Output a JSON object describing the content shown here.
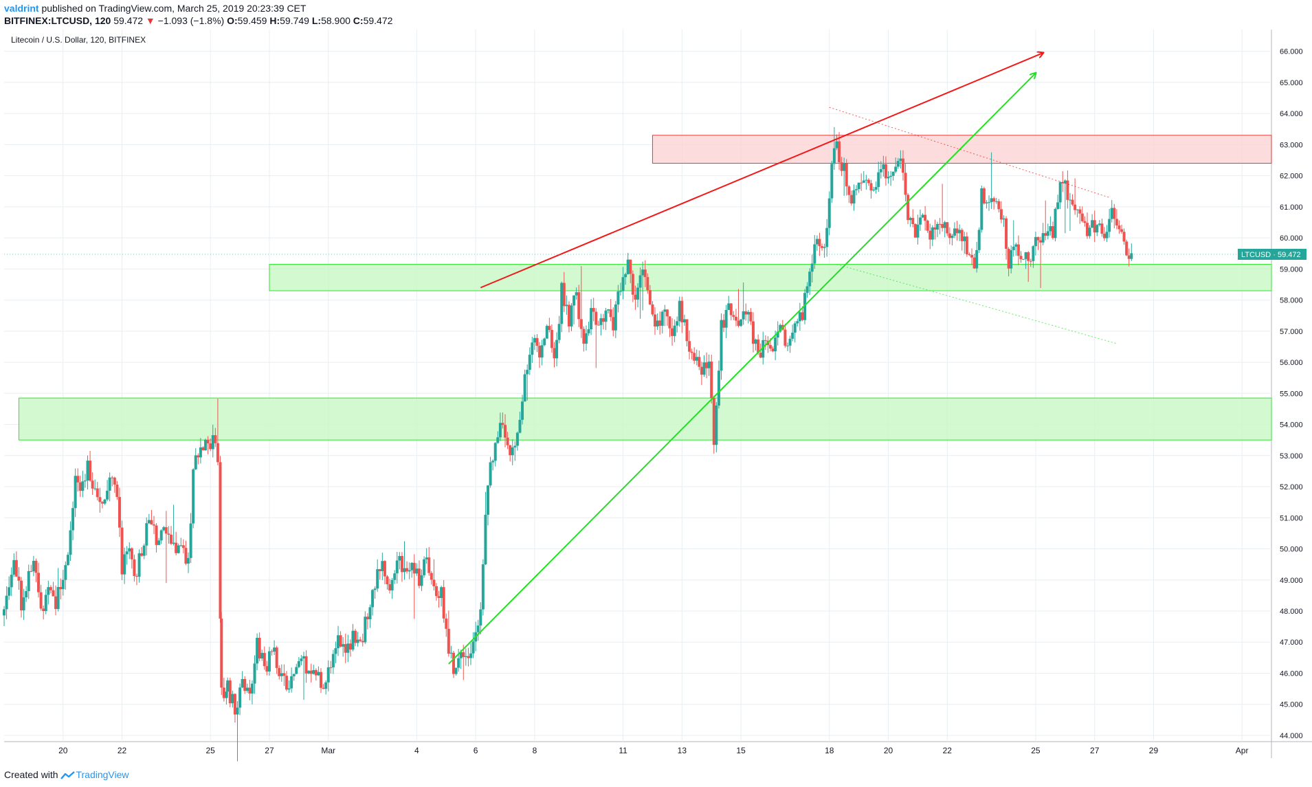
{
  "header": {
    "author": "valdrint",
    "published_text": "published on TradingView.com, March 25, 2019 20:23:39 CET",
    "symbol_line": "BITFINEX:LTCUSD, 120",
    "last_value": "59.472",
    "change_arrow": "▼",
    "change": "−1.093 (−1.8%)",
    "open_label": "O:",
    "open": "59.459",
    "high_label": "H:",
    "high": "59.749",
    "low_label": "L:",
    "low": "58.900",
    "close_label": "C:",
    "close": "59.472"
  },
  "footer": {
    "created_with": "Created with",
    "brand": "TradingView",
    "logo_icon": "tradingview-logo-icon"
  },
  "colors": {
    "up": "#26a69a",
    "down": "#ef5350",
    "grid": "#e8eef2",
    "support_zone_fill": "#c8f7c5",
    "support_zone_stroke": "#2ee62e",
    "resistance_zone_fill": "#fbd3d3",
    "resistance_zone_stroke": "#e53935",
    "price_tag": "#26a69a"
  },
  "chart_data": {
    "type": "candlestick",
    "title": "Litecoin / U.S. Dollar, 120, BITFINEX",
    "price_tag": {
      "label": "LTCUSD",
      "value": "59.472"
    },
    "y_range": [
      43.8,
      66.7
    ],
    "y_ticks": [
      "66.000",
      "65.000",
      "64.000",
      "63.000",
      "62.000",
      "61.000",
      "60.000",
      "59.000",
      "58.000",
      "57.000",
      "56.000",
      "55.000",
      "54.000",
      "53.000",
      "52.000",
      "51.000",
      "50.000",
      "49.000",
      "48.000",
      "47.000",
      "46.000",
      "45.000",
      "44.000"
    ],
    "x_range": [
      "2019-02-18",
      "2019-04-02"
    ],
    "x_ticks": [
      {
        "date": "2019-02-20",
        "label": "20"
      },
      {
        "date": "2019-02-22",
        "label": "22"
      },
      {
        "date": "2019-02-25",
        "label": "25"
      },
      {
        "date": "2019-02-27",
        "label": "27"
      },
      {
        "date": "2019-03-01",
        "label": "Mar"
      },
      {
        "date": "2019-03-04",
        "label": "4"
      },
      {
        "date": "2019-03-06",
        "label": "6"
      },
      {
        "date": "2019-03-08",
        "label": "8"
      },
      {
        "date": "2019-03-11",
        "label": "11"
      },
      {
        "date": "2019-03-13",
        "label": "13"
      },
      {
        "date": "2019-03-15",
        "label": "15"
      },
      {
        "date": "2019-03-18",
        "label": "18"
      },
      {
        "date": "2019-03-20",
        "label": "20"
      },
      {
        "date": "2019-03-22",
        "label": "22"
      },
      {
        "date": "2019-03-25",
        "label": "25"
      },
      {
        "date": "2019-03-27",
        "label": "27"
      },
      {
        "date": "2019-03-29",
        "label": "29"
      },
      {
        "date": "2019-04-01",
        "label": "Apr"
      }
    ],
    "path_points": [
      [
        "2019-02-18 00:00",
        48.0
      ],
      [
        "2019-02-18 08:00",
        49.9
      ],
      [
        "2019-02-18 14:00",
        48.3
      ],
      [
        "2019-02-19 00:00",
        49.6
      ],
      [
        "2019-02-19 06:00",
        48.0
      ],
      [
        "2019-02-19 12:00",
        48.9
      ],
      [
        "2019-02-19 18:00",
        48.3
      ],
      [
        "2019-02-20 00:00",
        49.0
      ],
      [
        "2019-02-20 06:00",
        50.5
      ],
      [
        "2019-02-20 10:00",
        52.5
      ],
      [
        "2019-02-20 14:00",
        52.0
      ],
      [
        "2019-02-20 20:00",
        52.6
      ],
      [
        "2019-02-21 02:00",
        52.0
      ],
      [
        "2019-02-21 08:00",
        51.6
      ],
      [
        "2019-02-21 14:00",
        52.4
      ],
      [
        "2019-02-21 20:00",
        51.9
      ],
      [
        "2019-02-22 00:00",
        49.4
      ],
      [
        "2019-02-22 06:00",
        49.8
      ],
      [
        "2019-02-22 12:00",
        49.2
      ],
      [
        "2019-02-22 18:00",
        50.4
      ],
      [
        "2019-02-23 00:00",
        50.8
      ],
      [
        "2019-02-23 06:00",
        50.2
      ],
      [
        "2019-02-23 12:00",
        50.6
      ],
      [
        "2019-02-23 18:00",
        49.9
      ],
      [
        "2019-02-24 00:00",
        50.2
      ],
      [
        "2019-02-24 06:00",
        49.5
      ],
      [
        "2019-02-24 10:00",
        52.5
      ],
      [
        "2019-02-24 16:00",
        53.2
      ],
      [
        "2019-02-24 22:00",
        53.6
      ],
      [
        "2019-02-25 02:00",
        53.4
      ],
      [
        "2019-02-25 06:00",
        53.0
      ],
      [
        "2019-02-25 09:00",
        45.3
      ],
      [
        "2019-02-25 14:00",
        45.6
      ],
      [
        "2019-02-25 20:00",
        44.8
      ],
      [
        "2019-02-26 02:00",
        45.7
      ],
      [
        "2019-02-26 08:00",
        45.1
      ],
      [
        "2019-02-26 14:00",
        47.0
      ],
      [
        "2019-02-26 20:00",
        46.1
      ],
      [
        "2019-02-27 02:00",
        46.8
      ],
      [
        "2019-02-27 08:00",
        46.2
      ],
      [
        "2019-02-27 14:00",
        45.4
      ],
      [
        "2019-02-27 20:00",
        45.9
      ],
      [
        "2019-02-28 02:00",
        46.7
      ],
      [
        "2019-02-28 08:00",
        45.9
      ],
      [
        "2019-02-28 14:00",
        46.2
      ],
      [
        "2019-02-28 20:00",
        45.4
      ],
      [
        "2019-03-01 02:00",
        46.4
      ],
      [
        "2019-03-01 08:00",
        47.0
      ],
      [
        "2019-03-01 14:00",
        46.6
      ],
      [
        "2019-03-01 20:00",
        47.1
      ],
      [
        "2019-03-02 02:00",
        46.8
      ],
      [
        "2019-03-02 08:00",
        48.0
      ],
      [
        "2019-03-02 14:00",
        48.9
      ],
      [
        "2019-03-02 20:00",
        49.6
      ],
      [
        "2019-03-03 02:00",
        48.6
      ],
      [
        "2019-03-03 08:00",
        49.9
      ],
      [
        "2019-03-03 14:00",
        49.1
      ],
      [
        "2019-03-03 20:00",
        49.7
      ],
      [
        "2019-03-04 02:00",
        48.9
      ],
      [
        "2019-03-04 08:00",
        49.6
      ],
      [
        "2019-03-04 14:00",
        48.5
      ],
      [
        "2019-03-04 20:00",
        48.8
      ],
      [
        "2019-03-05 00:00",
        47.2
      ],
      [
        "2019-03-05 06:00",
        46.2
      ],
      [
        "2019-03-05 12:00",
        46.9
      ],
      [
        "2019-03-05 18:00",
        46.4
      ],
      [
        "2019-03-06 00:00",
        47.3
      ],
      [
        "2019-03-06 04:00",
        48.0
      ],
      [
        "2019-03-06 10:00",
        52.2
      ],
      [
        "2019-03-06 16:00",
        53.4
      ],
      [
        "2019-03-06 22:00",
        54.0
      ],
      [
        "2019-03-07 04:00",
        52.9
      ],
      [
        "2019-03-07 10:00",
        53.5
      ],
      [
        "2019-03-07 16:00",
        55.4
      ],
      [
        "2019-03-07 22:00",
        56.8
      ],
      [
        "2019-03-08 04:00",
        56.2
      ],
      [
        "2019-03-08 10:00",
        57.3
      ],
      [
        "2019-03-08 16:00",
        56.0
      ],
      [
        "2019-03-08 22:00",
        58.3
      ],
      [
        "2019-03-09 04:00",
        57.4
      ],
      [
        "2019-03-09 10:00",
        58.1
      ],
      [
        "2019-03-09 16:00",
        56.8
      ],
      [
        "2019-03-09 22:00",
        57.6
      ],
      [
        "2019-03-10 04:00",
        56.9
      ],
      [
        "2019-03-10 10:00",
        57.7
      ],
      [
        "2019-03-10 16:00",
        57.2
      ],
      [
        "2019-03-10 22:00",
        58.4
      ],
      [
        "2019-03-11 04:00",
        59.2
      ],
      [
        "2019-03-11 10:00",
        58.1
      ],
      [
        "2019-03-11 16:00",
        58.9
      ],
      [
        "2019-03-11 22:00",
        57.8
      ],
      [
        "2019-03-12 04:00",
        57.2
      ],
      [
        "2019-03-12 10:00",
        57.6
      ],
      [
        "2019-03-12 16:00",
        57.0
      ],
      [
        "2019-03-12 22:00",
        57.9
      ],
      [
        "2019-03-13 04:00",
        56.7
      ],
      [
        "2019-03-13 10:00",
        56.3
      ],
      [
        "2019-03-13 16:00",
        55.6
      ],
      [
        "2019-03-13 22:00",
        55.9
      ],
      [
        "2019-03-14 02:00",
        53.6
      ],
      [
        "2019-03-14 08:00",
        57.1
      ],
      [
        "2019-03-14 14:00",
        57.6
      ],
      [
        "2019-03-14 20:00",
        57.2
      ],
      [
        "2019-03-15 02:00",
        57.8
      ],
      [
        "2019-03-15 08:00",
        57.1
      ],
      [
        "2019-03-15 14:00",
        56.2
      ],
      [
        "2019-03-15 20:00",
        56.6
      ],
      [
        "2019-03-16 02:00",
        56.4
      ],
      [
        "2019-03-16 08:00",
        56.9
      ],
      [
        "2019-03-16 14:00",
        56.6
      ],
      [
        "2019-03-16 20:00",
        57.2
      ],
      [
        "2019-03-17 02:00",
        57.6
      ],
      [
        "2019-03-17 08:00",
        58.9
      ],
      [
        "2019-03-17 14:00",
        59.8
      ],
      [
        "2019-03-17 20:00",
        59.6
      ],
      [
        "2019-03-18 02:00",
        62.3
      ],
      [
        "2019-03-18 06:00",
        62.9
      ],
      [
        "2019-03-18 12:00",
        62.2
      ],
      [
        "2019-03-18 18:00",
        61.4
      ],
      [
        "2019-03-19 00:00",
        62.0
      ],
      [
        "2019-03-19 06:00",
        61.6
      ],
      [
        "2019-03-19 12:00",
        61.5
      ],
      [
        "2019-03-19 18:00",
        62.2
      ],
      [
        "2019-03-20 00:00",
        61.9
      ],
      [
        "2019-03-20 06:00",
        62.1
      ],
      [
        "2019-03-20 10:00",
        62.8
      ],
      [
        "2019-03-20 16:00",
        60.5
      ],
      [
        "2019-03-20 22:00",
        60.2
      ],
      [
        "2019-03-21 04:00",
        60.6
      ],
      [
        "2019-03-21 10:00",
        60.1
      ],
      [
        "2019-03-21 16:00",
        60.7
      ],
      [
        "2019-03-21 22:00",
        60.5
      ],
      [
        "2019-03-22 04:00",
        60.1
      ],
      [
        "2019-03-22 10:00",
        60.3
      ],
      [
        "2019-03-22 16:00",
        59.6
      ],
      [
        "2019-03-22 22:00",
        58.9
      ],
      [
        "2019-03-23 04:00",
        61.3
      ],
      [
        "2019-03-23 10:00",
        61.0
      ],
      [
        "2019-03-23 16:00",
        61.2
      ],
      [
        "2019-03-23 22:00",
        60.6
      ],
      [
        "2019-03-24 02:00",
        59.2
      ],
      [
        "2019-03-24 08:00",
        59.6
      ],
      [
        "2019-03-24 14:00",
        59.3
      ],
      [
        "2019-03-24 20:00",
        59.4
      ],
      [
        "2019-03-25 02:00",
        59.9
      ],
      [
        "2019-03-25 08:00",
        60.3
      ],
      [
        "2019-03-25 14:00",
        60.1
      ],
      [
        "2019-03-25 20:00",
        61.9
      ],
      [
        "2019-03-26 02:00",
        61.4
      ],
      [
        "2019-03-26 08:00",
        60.8
      ],
      [
        "2019-03-26 14:00",
        60.4
      ],
      [
        "2019-03-26 20:00",
        60.2
      ],
      [
        "2019-03-27 02:00",
        60.6
      ],
      [
        "2019-03-27 08:00",
        60.1
      ],
      [
        "2019-03-27 14:00",
        60.9
      ],
      [
        "2019-03-27 20:00",
        60.3
      ],
      [
        "2019-03-28 02:00",
        59.5
      ],
      [
        "2019-03-28 08:00",
        59.47
      ]
    ],
    "zones": [
      {
        "name": "resistance-zone",
        "from": "2019-03-12 00:00",
        "to": "2019-04-02",
        "low": 62.4,
        "high": 63.3,
        "color": "red"
      },
      {
        "name": "support-zone-upper",
        "from": "2019-02-27 00:00",
        "to": "2019-04-02",
        "low": 58.3,
        "high": 59.15,
        "color": "green"
      },
      {
        "name": "support-zone-lower",
        "from": "2019-02-18 12:00",
        "to": "2019-04-02",
        "low": 53.5,
        "high": 54.85,
        "color": "green"
      }
    ],
    "trendlines": [
      {
        "name": "red-trendline",
        "from": [
          "2019-03-06 04:00",
          58.4
        ],
        "to": [
          "2019-03-25 06:00",
          65.95
        ],
        "color": "red",
        "arrow": true,
        "dotted": false
      },
      {
        "name": "green-trendline",
        "from": [
          "2019-03-05 02:00",
          46.3
        ],
        "to": [
          "2019-03-25 00:00",
          65.3
        ],
        "color": "green",
        "arrow": true,
        "dotted": false
      },
      {
        "name": "red-dotted-trendline",
        "from": [
          "2019-03-18 00:00",
          64.2
        ],
        "to": [
          "2019-03-27 12:00",
          61.3
        ],
        "color": "red",
        "arrow": false,
        "dotted": true
      },
      {
        "name": "green-dotted-trendline",
        "from": [
          "2019-03-18 06:00",
          59.15
        ],
        "to": [
          "2019-03-27 18:00",
          56.6
        ],
        "color": "green",
        "arrow": false,
        "dotted": true
      }
    ]
  }
}
